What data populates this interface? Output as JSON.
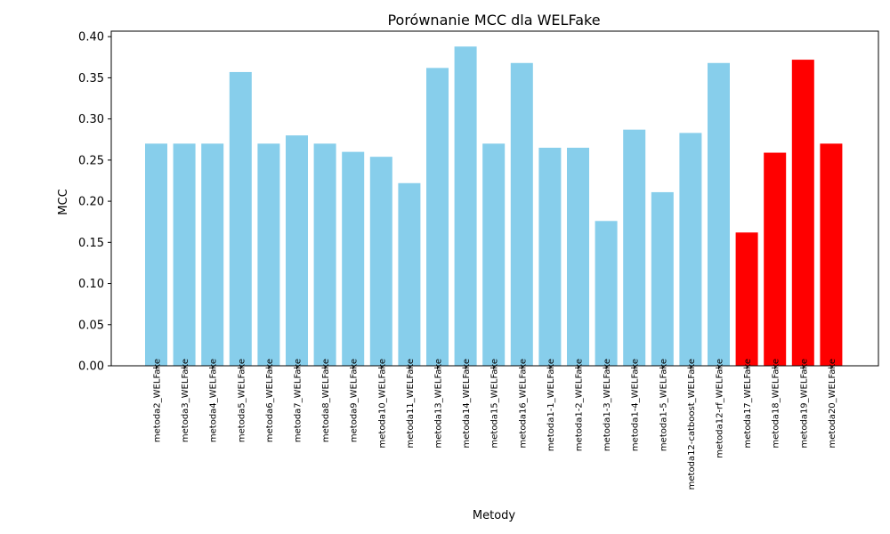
{
  "chart_data": {
    "type": "bar",
    "title": "Porównanie MCC dla WELFake",
    "xlabel": "Metody",
    "ylabel": "MCC",
    "ylim": [
      0,
      0.4067
    ],
    "yticks": [
      0.0,
      0.05,
      0.1,
      0.15,
      0.2,
      0.25,
      0.3,
      0.35,
      0.4
    ],
    "grid": false,
    "categories": [
      "metoda2_WELFake",
      "metoda3_WELFake",
      "metoda4_WELFake",
      "metoda5_WELFake",
      "metoda6_WELFake",
      "metoda7_WELFake",
      "metoda8_WELFake",
      "metoda9_WELFake",
      "metoda10_WELFake",
      "metoda11_WELFake",
      "metoda13_WELFake",
      "metoda14_WELFake",
      "metoda15_WELFake",
      "metoda16_WELFake",
      "metoda1-1_WELFake",
      "metoda1-2_WELFake",
      "metoda1-3_WELFake",
      "metoda1-4_WELFake",
      "metoda1-5_WELFake",
      "metoda12-catboost_WELFake",
      "metoda12-rf_WELFake",
      "metoda17_WELFake",
      "metoda18_WELFake",
      "metoda19_WELFake",
      "metoda20_WELFake"
    ],
    "values": [
      0.27,
      0.27,
      0.27,
      0.357,
      0.27,
      0.28,
      0.27,
      0.26,
      0.254,
      0.222,
      0.362,
      0.388,
      0.27,
      0.368,
      0.265,
      0.265,
      0.176,
      0.287,
      0.211,
      0.283,
      0.368,
      0.162,
      0.259,
      0.372,
      0.27
    ],
    "colors": [
      "#87CEEB",
      "#87CEEB",
      "#87CEEB",
      "#87CEEB",
      "#87CEEB",
      "#87CEEB",
      "#87CEEB",
      "#87CEEB",
      "#87CEEB",
      "#87CEEB",
      "#87CEEB",
      "#87CEEB",
      "#87CEEB",
      "#87CEEB",
      "#87CEEB",
      "#87CEEB",
      "#87CEEB",
      "#87CEEB",
      "#87CEEB",
      "#87CEEB",
      "#87CEEB",
      "#FF0000",
      "#FF0000",
      "#FF0000",
      "#FF0000"
    ]
  }
}
